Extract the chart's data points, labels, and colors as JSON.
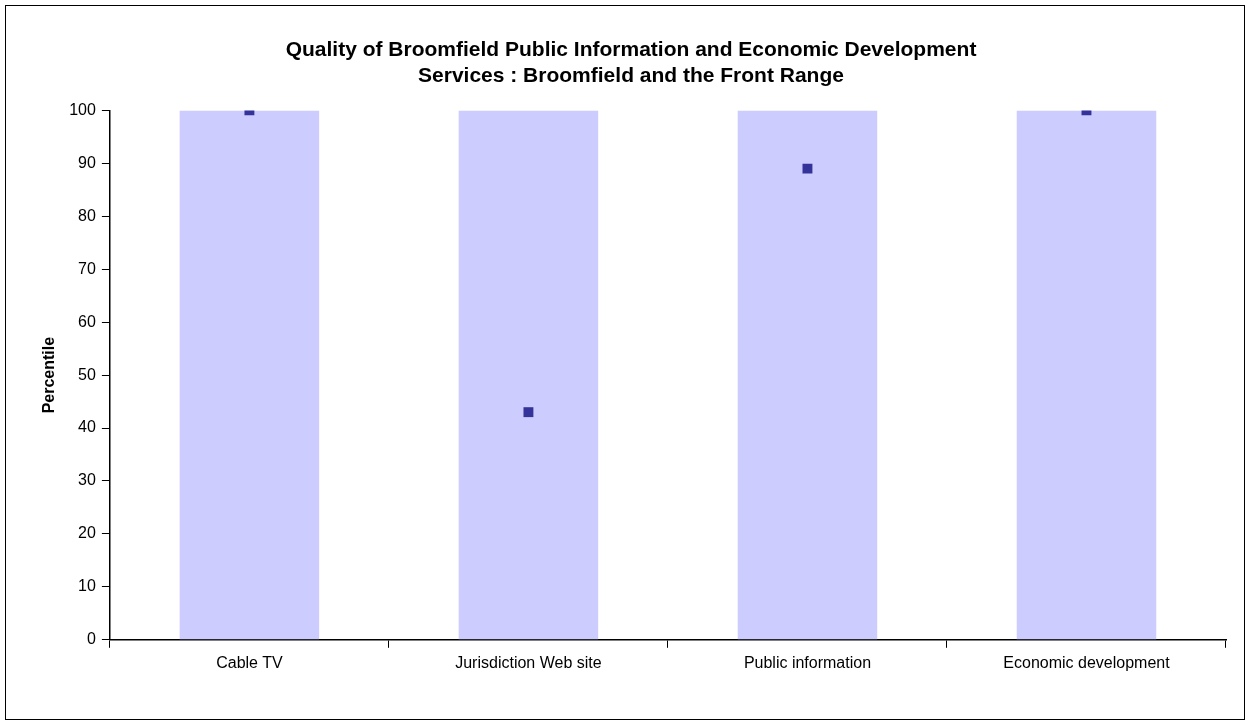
{
  "chart_data": {
    "type": "bar",
    "title": "Quality of Broomfield Public Information and Economic Development\nServices : Broomfield and the Front Range",
    "ylabel": "Percentile",
    "categories": [
      "Cable TV",
      "Jurisdiction Web site",
      "Public information",
      "Economic development"
    ],
    "series": [
      {
        "color": "#ccccff",
        "values": [
          100,
          100,
          100,
          100
        ]
      },
      {
        "type": "scatter",
        "color": "#333399",
        "marker": "square",
        "x": [
          "Cable TV",
          "Jurisdiction Web site",
          "Public information",
          "Economic development"
        ],
        "values": [
          100,
          43,
          89,
          100
        ]
      }
    ],
    "ylim": [
      0,
      100
    ],
    "yticks": [
      0,
      10,
      20,
      30,
      40,
      50,
      60,
      70,
      80,
      90,
      100
    ],
    "grid": false,
    "legend": false
  }
}
